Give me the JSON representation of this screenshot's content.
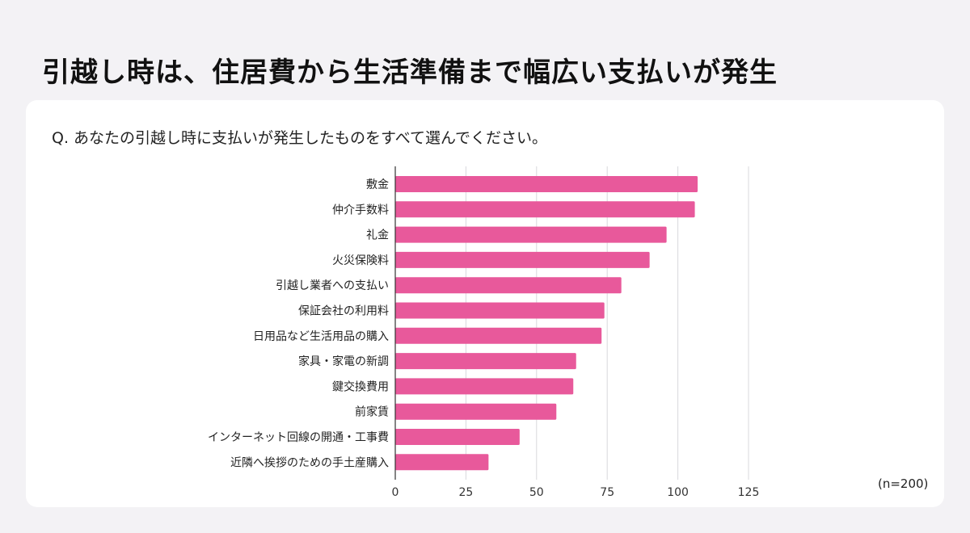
{
  "page": {
    "title": "引越し時は、住居費から生活準備まで幅広い支払いが発生",
    "question": "Q. あなたの引越し時に支払いが発生したものをすべて選んでください。",
    "sample_note": "(n=200)"
  },
  "colors": {
    "bar": "#e8599b",
    "grid": "#d8d8dc",
    "axis": "#333333",
    "background": "#f3f2f5",
    "card": "#ffffff"
  },
  "chart_data": {
    "type": "bar",
    "orientation": "horizontal",
    "title": "",
    "xlabel": "",
    "ylabel": "",
    "categories": [
      "敷金",
      "仲介手数料",
      "礼金",
      "火災保険料",
      "引越し業者への支払い",
      "保証会社の利用料",
      "日用品など生活用品の購入",
      "家具・家電の新調",
      "鍵交換費用",
      "前家賃",
      "インターネット回線の開通・工事費",
      "近隣へ挨拶のための手土産購入"
    ],
    "values": [
      107,
      106,
      96,
      90,
      80,
      74,
      73,
      64,
      63,
      57,
      44,
      33
    ],
    "xlim": [
      0,
      125
    ],
    "xticks": [
      0,
      25,
      50,
      75,
      100,
      125
    ],
    "grid": true
  }
}
